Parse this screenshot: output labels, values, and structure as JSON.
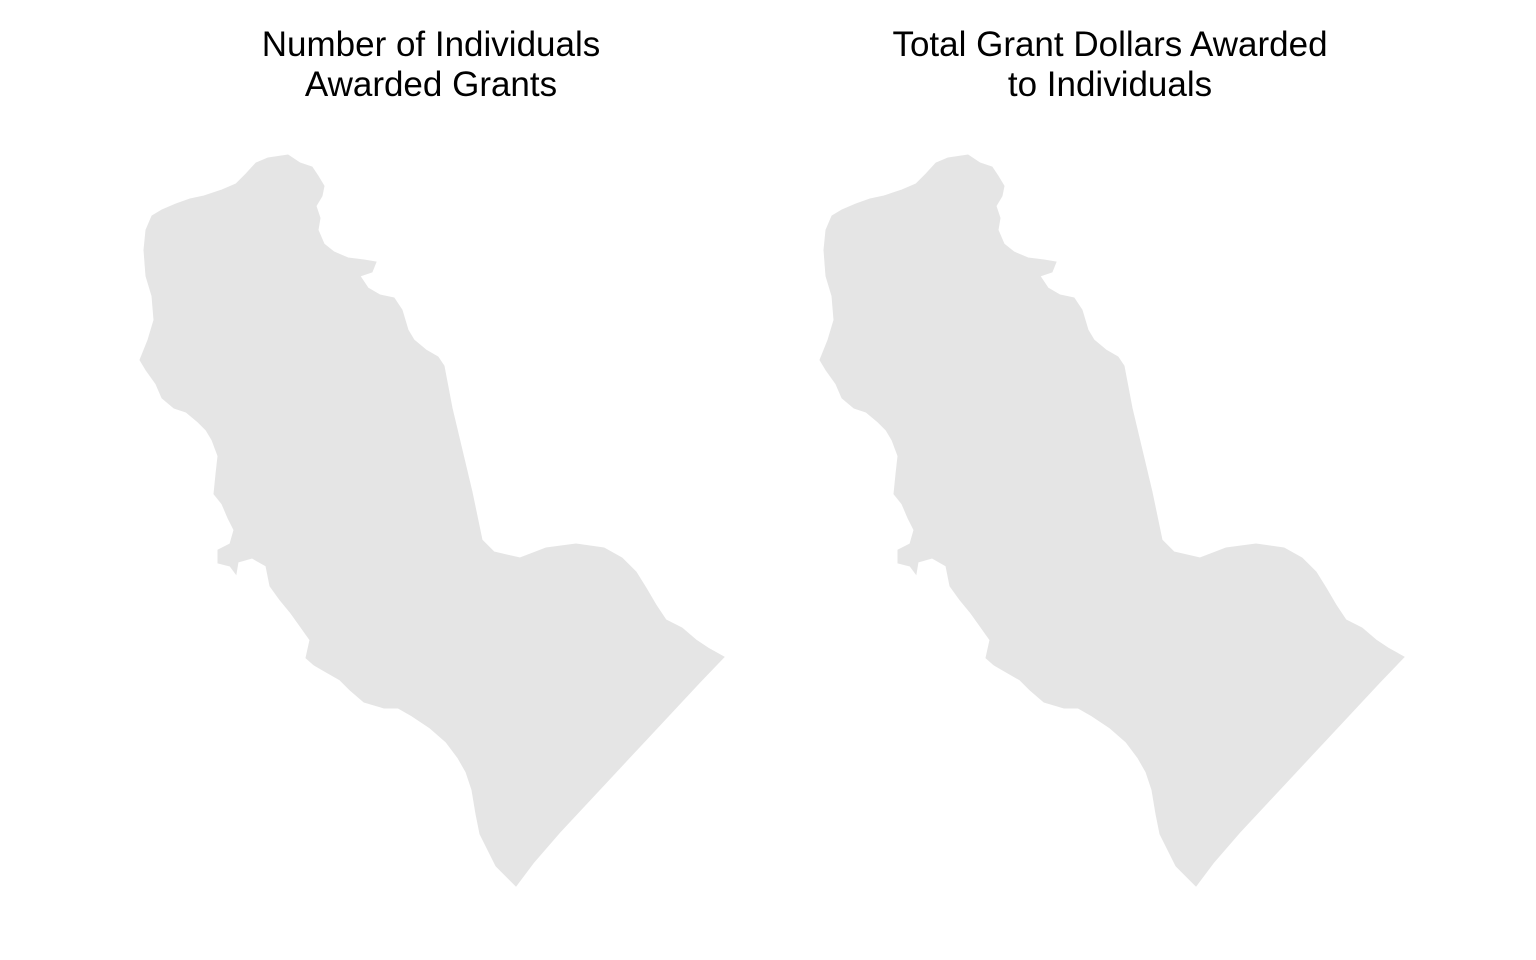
{
  "maps": [
    {
      "title_line1": "Number of Individuals",
      "title_line2": "Awarded Grants",
      "region_fill": "#e5e5e5"
    },
    {
      "title_line1": "Total Grant Dollars Awarded",
      "title_line2": "to Individuals",
      "region_fill": "#e5e5e5"
    }
  ]
}
